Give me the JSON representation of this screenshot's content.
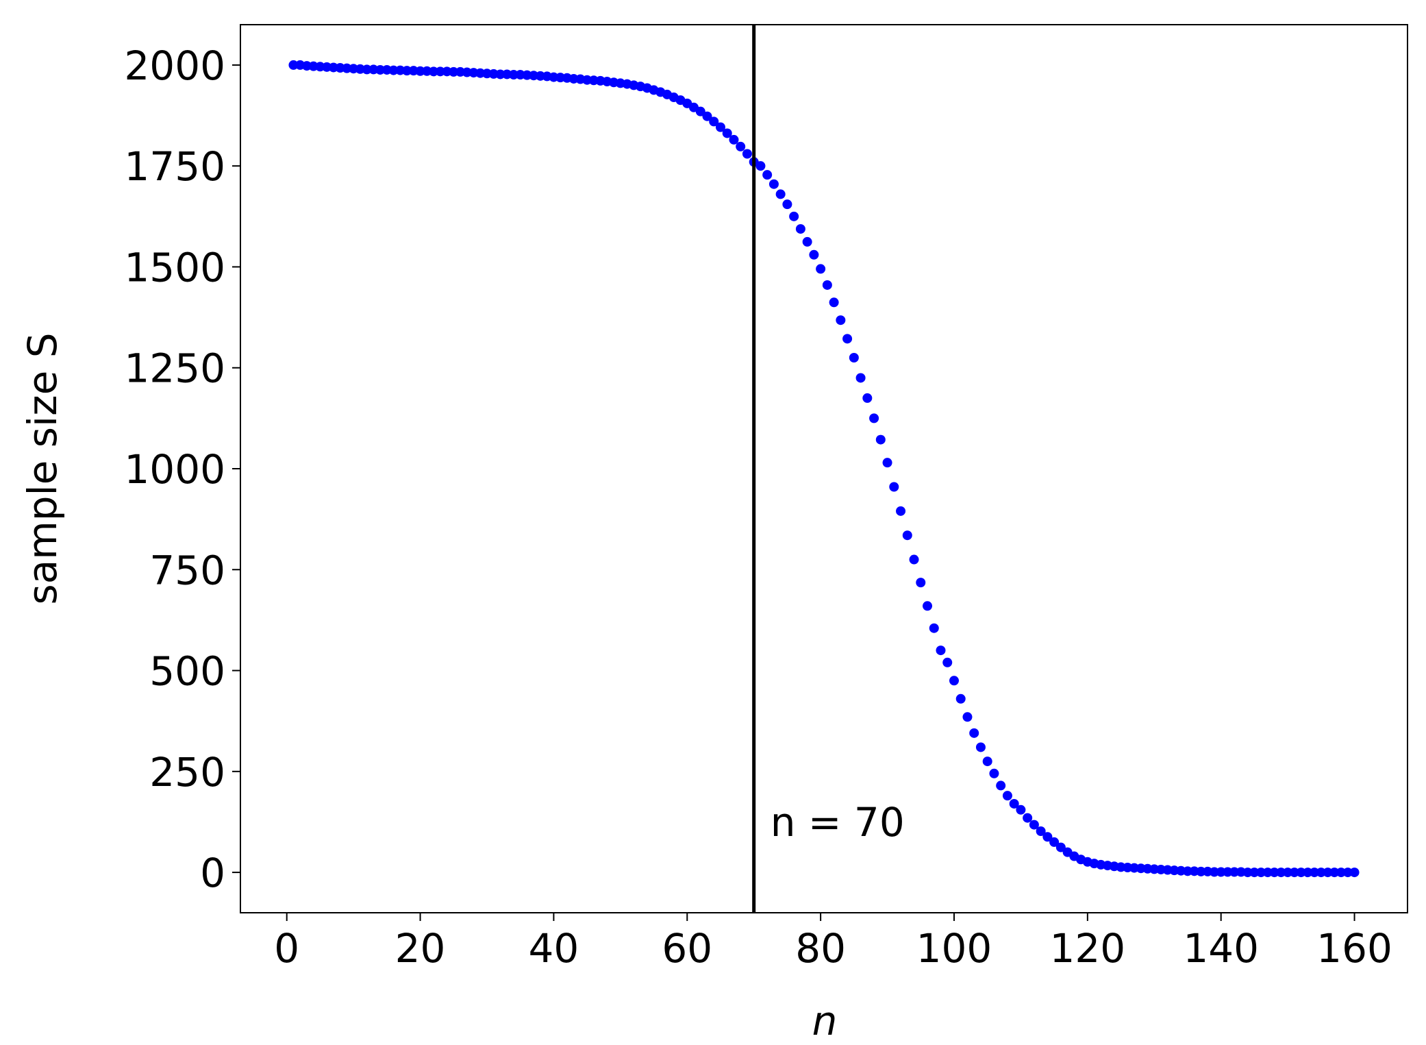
{
  "chart_data": {
    "type": "scatter",
    "x_label": "n",
    "y_label": "sample size S",
    "annotation": "n = 70",
    "vline": 70,
    "vline_color": "#000000",
    "color": "#0000ff",
    "x": [
      1,
      2,
      3,
      4,
      5,
      6,
      7,
      8,
      9,
      10,
      11,
      12,
      13,
      14,
      15,
      16,
      17,
      18,
      19,
      20,
      21,
      22,
      23,
      24,
      25,
      26,
      27,
      28,
      29,
      30,
      31,
      32,
      33,
      34,
      35,
      36,
      37,
      38,
      39,
      40,
      41,
      42,
      43,
      44,
      45,
      46,
      47,
      48,
      49,
      50,
      51,
      52,
      53,
      54,
      55,
      56,
      57,
      58,
      59,
      60,
      61,
      62,
      63,
      64,
      65,
      66,
      67,
      68,
      69,
      70,
      71,
      72,
      73,
      74,
      75,
      76,
      77,
      78,
      79,
      80,
      81,
      82,
      83,
      84,
      85,
      86,
      87,
      88,
      89,
      90,
      91,
      92,
      93,
      94,
      95,
      96,
      97,
      98,
      99,
      100,
      101,
      102,
      103,
      104,
      105,
      106,
      107,
      108,
      109,
      110,
      111,
      112,
      113,
      114,
      115,
      116,
      117,
      118,
      119,
      120,
      121,
      122,
      123,
      124,
      125,
      126,
      127,
      128,
      129,
      130,
      131,
      132,
      133,
      134,
      135,
      136,
      137,
      138,
      139,
      140,
      141,
      142,
      143,
      144,
      145,
      146,
      147,
      148,
      149,
      150,
      151,
      152,
      153,
      154,
      155,
      156,
      157,
      158,
      159,
      160
    ],
    "values": [
      2000,
      2000,
      1998,
      1997,
      1996,
      1995,
      1994,
      1993,
      1992,
      1991,
      1990,
      1989,
      1989,
      1988,
      1988,
      1987,
      1987,
      1986,
      1986,
      1985,
      1985,
      1984,
      1984,
      1984,
      1983,
      1983,
      1982,
      1981,
      1980,
      1979,
      1978,
      1977,
      1977,
      1976,
      1976,
      1975,
      1974,
      1973,
      1972,
      1970,
      1969,
      1968,
      1966,
      1965,
      1963,
      1962,
      1961,
      1959,
      1957,
      1955,
      1953,
      1950,
      1947,
      1943,
      1938,
      1933,
      1927,
      1920,
      1913,
      1905,
      1895,
      1885,
      1873,
      1860,
      1846,
      1831,
      1815,
      1798,
      1780,
      1760,
      1750,
      1728,
      1705,
      1680,
      1655,
      1625,
      1594,
      1562,
      1530,
      1495,
      1455,
      1412,
      1368,
      1322,
      1275,
      1225,
      1175,
      1125,
      1072,
      1015,
      955,
      895,
      835,
      775,
      718,
      660,
      605,
      550,
      520,
      475,
      430,
      385,
      345,
      310,
      275,
      245,
      215,
      190,
      170,
      155,
      135,
      118,
      102,
      88,
      75,
      62,
      50,
      40,
      32,
      26,
      22,
      19,
      17,
      15,
      13,
      12,
      11,
      10,
      9,
      8,
      7,
      6,
      5,
      4,
      3,
      3,
      2,
      2,
      1,
      1,
      1,
      1,
      1,
      0,
      0,
      0,
      0,
      0,
      0,
      0,
      0,
      0,
      0,
      0,
      0,
      0,
      0,
      0,
      0,
      0
    ],
    "xlim": [
      -6.95,
      167.95
    ],
    "xticks": [
      0,
      20,
      40,
      60,
      80,
      100,
      120,
      140,
      160
    ],
    "ylim": [
      -100,
      2100
    ],
    "yticks": [
      0,
      250,
      500,
      750,
      1000,
      1250,
      1500,
      1750,
      2000
    ],
    "grid": false
  }
}
